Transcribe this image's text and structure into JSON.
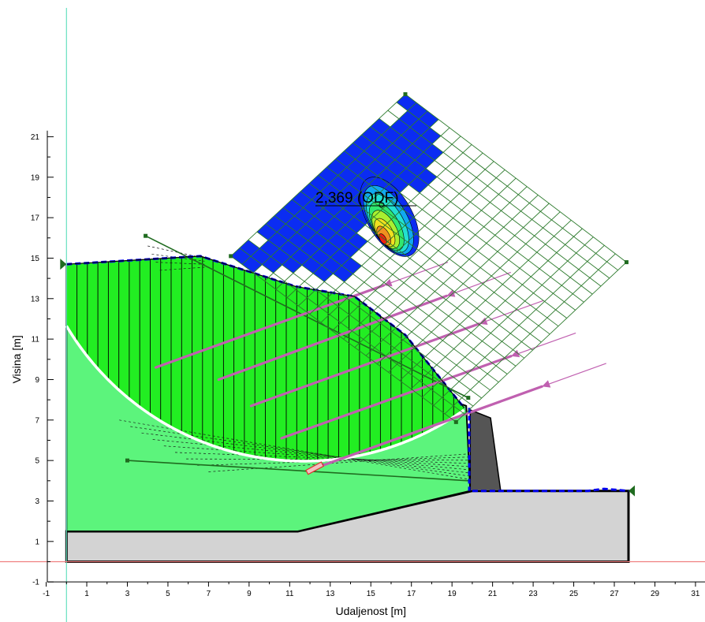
{
  "chart_data": {
    "type": "slope-stability-section",
    "xlabel": "Udaljenost [m]",
    "ylabel": "Visina [m]",
    "xlim": [
      -1,
      31
    ],
    "ylim": [
      -1,
      22
    ],
    "x_ticks": [
      -1,
      1,
      3,
      5,
      7,
      9,
      11,
      13,
      15,
      17,
      19,
      21,
      23,
      25,
      27,
      29,
      31
    ],
    "y_ticks": [
      -1,
      1,
      3,
      5,
      7,
      9,
      11,
      13,
      15,
      17,
      19,
      21
    ],
    "safety_factor_label": "2,369 (ODF)",
    "slip_circle": {
      "center": [
        11.7,
        18.6
      ],
      "radius": 13.6
    },
    "ground_surface": [
      [
        0,
        14.7
      ],
      [
        6.6,
        15.1
      ],
      [
        11.3,
        13.6
      ],
      [
        14.2,
        13.1
      ],
      [
        16.7,
        11.2
      ],
      [
        19.6,
        7.6
      ]
    ],
    "bottom_layer": [
      [
        0,
        0
      ],
      [
        0,
        1.5
      ],
      [
        11.4,
        1.5
      ],
      [
        20,
        3.5
      ],
      [
        27.7,
        3.5
      ],
      [
        27.7,
        0
      ]
    ],
    "middle_layer": [
      [
        0,
        1.5
      ],
      [
        0,
        14.7
      ],
      [
        19.7,
        7.7
      ],
      [
        19.9,
        3.5
      ],
      [
        11.4,
        1.5
      ]
    ],
    "wall": [
      [
        19.9,
        3.5
      ],
      [
        19.9,
        7.5
      ],
      [
        20.9,
        7.1
      ],
      [
        21.4,
        3.5
      ]
    ],
    "right_surface": [
      [
        20,
        3.5
      ],
      [
        25.7,
        3.5
      ],
      [
        26.5,
        3.6
      ],
      [
        27.7,
        3.5
      ]
    ],
    "anchors": [
      {
        "start": [
          4.4,
          9.6
        ],
        "end": [
          18.8,
          14.8
        ]
      },
      {
        "start": [
          7.5,
          9.0
        ],
        "end": [
          21.9,
          14.3
        ]
      },
      {
        "start": [
          9.1,
          7.7
        ],
        "end": [
          23.5,
          12.9
        ]
      },
      {
        "start": [
          10.6,
          6.1
        ],
        "end": [
          25.1,
          11.3
        ]
      },
      {
        "start": [
          12.2,
          4.6
        ],
        "end": [
          26.6,
          9.8
        ]
      }
    ],
    "phreatic_line": [
      [
        3.9,
        16.1
      ],
      [
        19.8,
        8.1
      ]
    ],
    "lower_line": [
      [
        3,
        5.0
      ],
      [
        19.8,
        4.0
      ]
    ],
    "grid": {
      "corners": [
        [
          8.1,
          15.1
        ],
        [
          16.7,
          23.1
        ],
        [
          27.6,
          14.8
        ],
        [
          19.2,
          6.9
        ]
      ],
      "cols": 20,
      "rows": 20
    },
    "colors": {
      "bottom_layer": "#d3d3d3",
      "middle_layer": "#5cf47c",
      "sliding_mass": "#22ee22",
      "wall": "#555555",
      "anchor": "#c060b0",
      "grid_line": "#2c7a2c",
      "grid_blue": "#0b2cf2",
      "slip_surface": "#ffffff",
      "boundary": "#0000ee",
      "axis_x0": "#66e0c0",
      "axis_y0": "#f08080"
    }
  }
}
